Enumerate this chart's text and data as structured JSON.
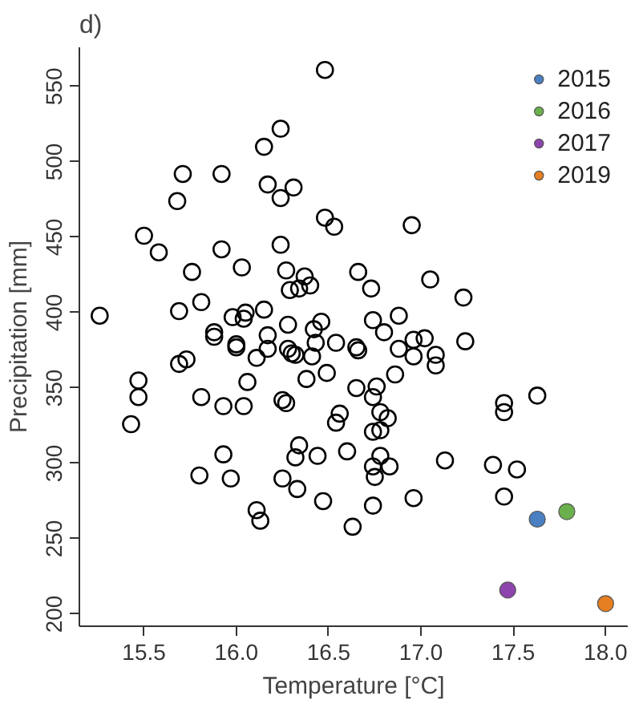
{
  "chart_data": {
    "type": "scatter",
    "title": "d)",
    "xlabel": "Temperature [°C]",
    "ylabel": "Precipitation [mm]",
    "xlim": [
      15.15,
      18.12
    ],
    "ylim": [
      192,
      576
    ],
    "xticks": [
      {
        "value": 15.5,
        "label": "15.5"
      },
      {
        "value": 16,
        "label": "16.0"
      },
      {
        "value": 16.5,
        "label": "16.5"
      },
      {
        "value": 17,
        "label": "17.0"
      },
      {
        "value": 17.5,
        "label": "17.5"
      },
      {
        "value": 18,
        "label": "18.0"
      }
    ],
    "yticks": [
      200,
      250,
      300,
      350,
      400,
      450,
      500,
      550
    ],
    "grid": false,
    "legend": "top right",
    "marker": "circle",
    "series": [
      {
        "color": "#000000",
        "x": [
          15.26,
          15.5,
          15.58,
          15.68,
          15.71,
          15.92,
          15.76,
          15.92,
          16.03,
          15.81,
          15.69,
          16.15,
          16.24,
          16.17,
          16.24,
          16.31,
          16.24,
          16.27,
          16.29,
          16.15,
          16.28,
          16.05,
          15.98,
          16.04,
          15.88,
          15.88,
          16.0,
          16.0,
          16.17,
          16.48,
          16.48,
          16.53,
          16.95,
          16.37,
          16.34,
          16.4,
          16.66,
          16.73,
          17.05,
          17.23,
          16.46,
          16.42,
          16.74,
          16.88,
          16.8,
          16.17,
          16.28,
          16.3,
          16.32,
          16.43,
          16.54,
          16.65,
          16.66,
          16.88,
          16.96,
          17.02,
          17.08,
          17.08,
          17.24,
          16.96,
          16.41,
          16.38,
          16.49,
          16.65,
          16.76,
          16.74,
          16.86,
          16.25,
          16.27,
          16.56,
          16.54,
          16.78,
          16.82,
          16.74,
          16.78,
          16.34,
          16.32,
          16.44,
          16.6,
          16.78,
          16.74,
          16.83,
          16.75,
          17.13,
          17.39,
          17.52,
          17.45,
          17.45,
          17.63,
          16.25,
          16.33,
          16.47,
          16.74,
          16.96,
          16.63,
          17.45,
          15.69,
          15.73,
          16.11,
          16.06,
          15.47,
          15.47,
          15.43,
          15.81,
          15.93,
          16.04,
          15.93,
          15.8,
          15.97,
          16.11,
          16.13
        ],
        "values": [
          398,
          451,
          440,
          474,
          492,
          492,
          427,
          442,
          430,
          407,
          401,
          510,
          522,
          485,
          476,
          483,
          445,
          428,
          415,
          402,
          392,
          400,
          397,
          396,
          387,
          384,
          379,
          377,
          385,
          561,
          463,
          457,
          458,
          424,
          416,
          418,
          427,
          416,
          422,
          410,
          394,
          389,
          395,
          398,
          387,
          376,
          376,
          373,
          372,
          380,
          380,
          377,
          375,
          376,
          382,
          383,
          372,
          365,
          381,
          371,
          371,
          356,
          360,
          350,
          351,
          344,
          359,
          342,
          340,
          333,
          327,
          334,
          330,
          321,
          322,
          312,
          304,
          305,
          308,
          305,
          298,
          298,
          291,
          302,
          299,
          296,
          340,
          334,
          345,
          290,
          283,
          275,
          272,
          277,
          258,
          278,
          366,
          369,
          370,
          354,
          355,
          344,
          326,
          344,
          338,
          338,
          306,
          292,
          290,
          269,
          262
        ]
      },
      {
        "name": "2015",
        "color": "#4a7fc1",
        "x": [
          17.63
        ],
        "values": [
          263
        ]
      },
      {
        "name": "2016",
        "color": "#6ab04c",
        "x": [
          17.79
        ],
        "values": [
          268
        ]
      },
      {
        "name": "2017",
        "color": "#8e44ad",
        "x": [
          17.47
        ],
        "values": [
          216
        ]
      },
      {
        "name": "2019",
        "color": "#e67e22",
        "x": [
          18.0
        ],
        "values": [
          207
        ]
      }
    ]
  }
}
